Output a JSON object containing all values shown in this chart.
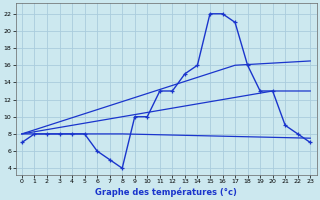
{
  "xlabel": "Graphe des températures (°c)",
  "bg_color": "#cce8ef",
  "grid_color": "#aaccdd",
  "line_color": "#1a35cc",
  "x_ticks": [
    0,
    1,
    2,
    3,
    4,
    5,
    6,
    7,
    8,
    9,
    10,
    11,
    12,
    13,
    14,
    15,
    16,
    17,
    18,
    19,
    20,
    21,
    22,
    23
  ],
  "y_ticks": [
    4,
    6,
    8,
    10,
    12,
    14,
    16,
    18,
    20,
    22
  ],
  "ylim": [
    3.2,
    23.2
  ],
  "xlim": [
    -0.5,
    23.5
  ],
  "line1_x": [
    0,
    1,
    2,
    3,
    4,
    5,
    6,
    7,
    8,
    9,
    10,
    11,
    12,
    13,
    14,
    15,
    16,
    17,
    18,
    19,
    20,
    21,
    22,
    23
  ],
  "line1_y": [
    7,
    8,
    8,
    8,
    8,
    8,
    6,
    5,
    4,
    10,
    10,
    13,
    13,
    15,
    16,
    22,
    22,
    21,
    16,
    13,
    13,
    9,
    8,
    7
  ],
  "line2_x": [
    0,
    8,
    23
  ],
  "line2_y": [
    8,
    8,
    7.5
  ],
  "line3_x": [
    0,
    20,
    23
  ],
  "line3_y": [
    8,
    13,
    13
  ],
  "line4_x": [
    0,
    17,
    23
  ],
  "line4_y": [
    8,
    16,
    16.5
  ]
}
